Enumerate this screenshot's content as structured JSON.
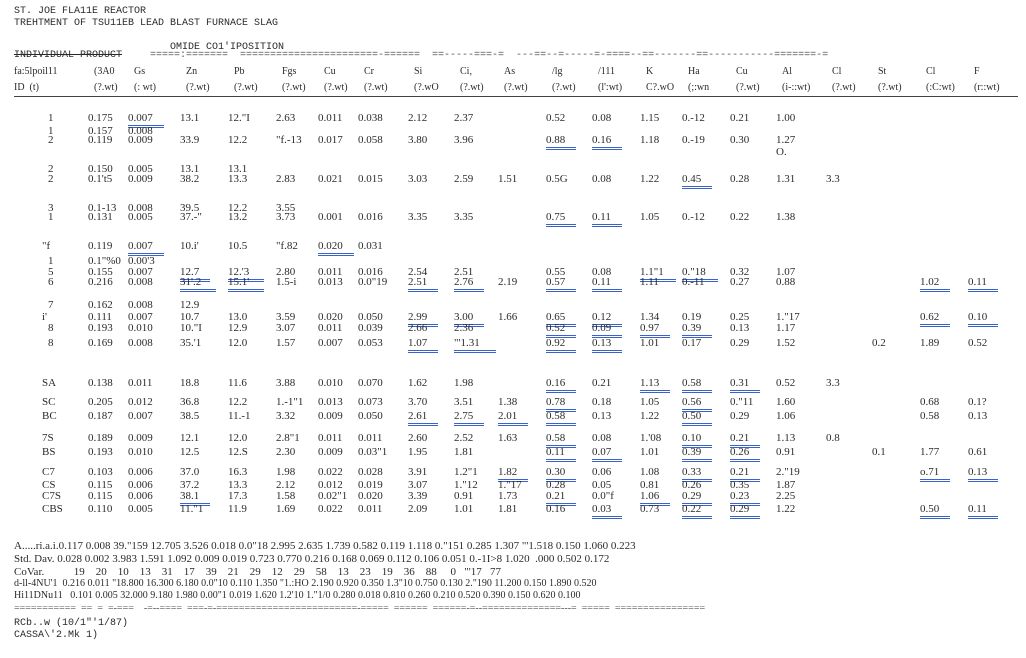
{
  "header": {
    "line1": "ST. JOE FLA11E REACTOR",
    "line2": "TREHTMENT OF TSU11EB LEAD BLAST FURNACE SLAG",
    "line3": "OMIDE CO1'IPOSITION",
    "line4": "INDIVIDUAL PRODUCT",
    "rule_top": "=====:=======  =======================-======  ==-----===-=  ---==--=-----=-====--==-------==-----------=======-=",
    "rule_right": "----==--=-----=-==============--==--------=====---------"
  },
  "columns": [
    {
      "a": "fa:5lpoil11",
      "b": "ID  (t)"
    },
    {
      "a": "(3A0",
      "b": "(?.wt)"
    },
    {
      "a": "Gs",
      "b": "(: wt)"
    },
    {
      "a": "Zn",
      "b": "(?.wt)"
    },
    {
      "a": "Pb",
      "b": "(?.wt)"
    },
    {
      "a": "Fgs",
      "b": "(?.wt)"
    },
    {
      "a": "Cu",
      "b": "(?.wt)"
    },
    {
      "a": "Cr",
      "b": "(?.wt)"
    },
    {
      "a": "Si",
      "b": "(?.wO"
    },
    {
      "a": "Ci,",
      "b": "(?.wt)"
    },
    {
      "a": "As",
      "b": "(?.wt)"
    },
    {
      "a": "/lg",
      "b": "(?.wt)"
    },
    {
      "a": "/111",
      "b": "(l':wt)"
    },
    {
      "a": "K",
      "b": "C?.wO"
    },
    {
      "a": "Ha",
      "b": "(;:wn"
    },
    {
      "a": "Cu",
      "b": "(?.wt)"
    },
    {
      "a": "Al",
      "b": "(i-::wt)"
    },
    {
      "a": "Cl",
      "b": "(?.wt)"
    },
    {
      "a": "St",
      "b": "(?.wt)"
    },
    {
      "a": "Cl",
      "b": "(:C:wt)"
    },
    {
      "a": "F",
      "b": "(r::wt)"
    }
  ],
  "rows": [
    {
      "id": "1",
      "c": [
        "0.175",
        "0.007",
        "13.1",
        "12.\"I",
        "2.63",
        "0.011",
        "0.038",
        "2.12",
        "2.37",
        "",
        "0.52",
        "0.08",
        "1.15",
        "0.-12",
        "0.21",
        "1.00",
        "",
        "",
        "",
        ""
      ]
    },
    {
      "id": "1",
      "c": [
        "0.157",
        "0.008",
        "",
        "",
        "",
        "",
        "",
        "",
        "",
        "",
        "",
        "",
        "",
        "",
        "",
        "",
        "",
        "",
        "",
        ""
      ]
    },
    {
      "id": "2",
      "c": [
        "0.119",
        "0.009",
        "33.9",
        "12.2",
        "\"f.-13",
        "0.017",
        "0.058",
        "3.80",
        "3.96",
        "",
        "0.88",
        "0.16",
        "1.18",
        "0.-19",
        "0.30",
        "1.27",
        "",
        "",
        "",
        ""
      ]
    },
    {
      "id": "",
      "c": [
        "",
        "",
        "",
        "",
        "",
        "",
        "",
        "",
        "",
        "",
        "",
        "",
        "",
        "",
        "",
        "O.",
        "",
        "",
        "",
        ""
      ]
    },
    {
      "id": "2",
      "c": [
        "0.150",
        "0.005",
        "13.1",
        "13.1",
        "",
        "",
        "",
        "",
        "",
        "",
        "",
        "",
        "",
        "",
        "",
        "",
        "",
        "",
        "",
        ""
      ]
    },
    {
      "id": "2",
      "c": [
        "0.1't5",
        "0.009",
        "38.2",
        "13.3",
        "2.83",
        "0.021",
        "0.015",
        "3.03",
        "2.59",
        "1.51",
        "0.5G",
        "0.08",
        "1.22",
        "0.45",
        "0.28",
        "1.31",
        "3.3",
        "",
        "",
        ""
      ]
    },
    {
      "id": "3",
      "c": [
        "0.1-13",
        "0.008",
        "39.5",
        "12.2",
        "3.55",
        "",
        "",
        "",
        "",
        "",
        "",
        "",
        "",
        "",
        "",
        "",
        "",
        "",
        "",
        ""
      ]
    },
    {
      "id": "1",
      "c": [
        "0.131",
        "0.005",
        "37.-\"",
        "13.2",
        "3.73",
        "0.001",
        "0.016",
        "3.35",
        "3.35",
        "",
        "0.75",
        "0.11",
        "1.05",
        "0.-12",
        "0.22",
        "1.38",
        "",
        "",
        "",
        ""
      ]
    },
    {
      "id": "\"f",
      "c": [
        "0.119",
        "0.007",
        "10.i'",
        "10.5",
        "\"f.82",
        "0.020",
        "0.031",
        "",
        "",
        "",
        "",
        "",
        "",
        "",
        "",
        "",
        "",
        "",
        "",
        ""
      ]
    },
    {
      "id": "1",
      "c": [
        "0.1\"%0",
        "0.00'3",
        "",
        "",
        "",
        "",
        "",
        "",
        "",
        "",
        "",
        "",
        "",
        "",
        "",
        "",
        "",
        "",
        "",
        ""
      ]
    },
    {
      "id": "5",
      "c": [
        "0.155",
        "0.007",
        "12.7",
        "12.'3",
        "2.80",
        "0.011",
        "0.016",
        "2.54",
        "2.51",
        "",
        "0.55",
        "0.08",
        "1.1\"1",
        "0.\"18",
        "0.32",
        "1.07",
        "",
        "",
        "",
        ""
      ]
    },
    {
      "id": "6",
      "c": [
        "0.216",
        "0.008",
        "31'.2",
        "15.1'",
        "1.5-i",
        "0.013",
        "0.0\"19",
        "2.51",
        "2.76",
        "2.19",
        "0.57",
        "0.11",
        "1.11",
        "0.-11",
        "0.27",
        "0.88",
        "",
        "",
        "1.02",
        "0.11"
      ]
    },
    {
      "id": "7",
      "c": [
        "0.162",
        "0.008",
        "12.9",
        "",
        "",
        "",
        "",
        "",
        "",
        "",
        "",
        "",
        "",
        "",
        "",
        "",
        "",
        "",
        "",
        ""
      ]
    },
    {
      "id": "i'",
      "c": [
        "0.111",
        "0.007",
        "10.7",
        "13.0",
        "3.59",
        "0.020",
        "0.050",
        "2.99",
        "3.00",
        "1.66",
        "0.65",
        "0.12",
        "1.34",
        "0.19",
        "0.25",
        "1.\"17",
        "",
        "",
        "0.62",
        "0.10"
      ]
    },
    {
      "id": "8",
      "c": [
        "0.193",
        "0.010",
        "10.\"I",
        "12.9",
        "3.07",
        "0.011",
        "0.039",
        "2.66",
        "2.36",
        "",
        "0.52",
        "0.09",
        "0.97",
        "0.39",
        "0.13",
        "1.17",
        "",
        "",
        "",
        ""
      ]
    },
    {
      "id": "8",
      "c": [
        "0.169",
        "0.008",
        "35.'1",
        "12.0",
        "1.57",
        "0.007",
        "0.053",
        "1.07",
        "\"'1.31",
        "",
        "0.92",
        "0.13",
        "1.01",
        "0.17",
        "0.29",
        "1.52",
        "",
        "0.2",
        "1.89",
        "0.52"
      ]
    },
    {
      "id": "SA",
      "c": [
        "0.138",
        "0.011",
        "18.8",
        "11.6",
        "3.88",
        "0.010",
        "0.070",
        "1.62",
        "1.98",
        "",
        "0.16",
        "0.21",
        "1.13",
        "0.58",
        "0.31",
        "0.52",
        "3.3",
        "",
        "",
        ""
      ]
    },
    {
      "id": "SC",
      "c": [
        "0.205",
        "0.012",
        "36.8",
        "12.2",
        "1.-1\"1",
        "0.013",
        "0.073",
        "3.70",
        "3.51",
        "1.38",
        "0.78",
        "0.18",
        "1.05",
        "0.56",
        "0.\"11",
        "1.60",
        "",
        "",
        "0.68",
        "0.1?"
      ]
    },
    {
      "id": "BC",
      "c": [
        "0.187",
        "0.007",
        "38.5",
        "11.-1",
        "3.32",
        "0.009",
        "0.050",
        "2.61",
        "2.75",
        "2.01",
        "0.58",
        "0.13",
        "1.22",
        "0.50",
        "0.29",
        "1.06",
        "",
        "",
        "0.58",
        "0.13"
      ]
    },
    {
      "id": "7S",
      "c": [
        "0.189",
        "0.009",
        "12.1",
        "12.0",
        "2.8\"1",
        "0.011",
        "0.011",
        "2.60",
        "2.52",
        "1.63",
        "0.58",
        "0.08",
        "1.'08",
        "0.10",
        "0.21",
        "1.13",
        "0.8",
        "",
        "",
        ""
      ]
    },
    {
      "id": "BS",
      "c": [
        "0.193",
        "0.010",
        "12.5",
        "12.S",
        "2.30",
        "0.009",
        "0.03\"1",
        "1.95",
        "1.81",
        "",
        "0.11",
        "0.07",
        "1.01",
        "0.39",
        "0.26",
        "0.91",
        "",
        "0.1",
        "1.77",
        "0.61"
      ]
    },
    {
      "id": "C7",
      "c": [
        "0.103",
        "0.006",
        "37.0",
        "16.3",
        "1.98",
        "0.022",
        "0.028",
        "3.91",
        "1.2\"1",
        "1.82",
        "0.30",
        "0.06",
        "1.08",
        "0.33",
        "0.21",
        "2.\"19",
        "",
        "",
        "o.71",
        "0.13"
      ]
    },
    {
      "id": "CS",
      "c": [
        "0.115",
        "0.006",
        "37.2",
        "13.3",
        "2.12",
        "0.012",
        "0.019",
        "3.07",
        "1.\"12",
        "1.\"17",
        "0.28",
        "0.05",
        "0.81",
        "0.26",
        "0.35",
        "1.87",
        "",
        "",
        "",
        ""
      ]
    },
    {
      "id": "C7S",
      "c": [
        "0.115",
        "0.006",
        "38.1",
        "17.3",
        "1.58",
        "0.02\"1",
        "0.020",
        "3.39",
        "0.91",
        "1.73",
        "0.21",
        "0.0\"f",
        "1.06",
        "0.29",
        "0.23",
        "2.25",
        "",
        "",
        "",
        ""
      ]
    },
    {
      "id": "CBS",
      "c": [
        "0.110",
        "0.005",
        "11.\"1",
        "11.9",
        "1.69",
        "0.022",
        "0.011",
        "2.09",
        "1.01",
        "1.81",
        "0.16",
        "0.03",
        "0.73",
        "0.22",
        "0.29",
        "1.22",
        "",
        "",
        "0.50",
        "0.11"
      ]
    }
  ],
  "footer": {
    "avg": "A.....ri.a.i.0.117 0.008 39.\"159 12.705 3.526 0.018 0.0\"18 2.995 2.635 1.739 0.582 0.119 1.118 0.\"151 0.285 1.307 \"'1.518 0.150 1.060 0.223",
    "std": "Std. Dav. 0.028 0.002 3.983 1.591 1.092 0.009 0.019 0.723 0.770 0.216 0.168 0.069 0.112 0.106 0.051 0.-1I>8 1.020  .000 0.502 0.172",
    "covar_label": "CoVar.",
    "covar": "     19    20    10    13    31    17    39    21    29    12    29    58    13    23    19    36    88     0   \"'17   77",
    "min": "d-ll-4NU'1  0.216 0.011 \"18.800 16.300 6.180 0.0\"10 0.110 1.350 \"1.:HO 2.190 0.920 0.350 1.3\"10 0.750 0.130 2.\"190 11.200 0.150 1.890 0.520",
    "max": "Hi11DNu11   0.101 0.005 32.000 9.180 1.980 0.00\"1 0.019 1.620 1.2'10 1.\"1/0 0.280 0.018 0.810 0.260 0.210 0.520 0.390 0.150 0.620 0.100",
    "rule": "===========  ==  =  =-===    -=--====  ===-=-=========================-=====  ======  ======-=--==============---=  =====  ================",
    "sig1": "RCb..w (10/1\"'1/87)",
    "sig2": "CASSA\\'2.Mk 1)"
  }
}
